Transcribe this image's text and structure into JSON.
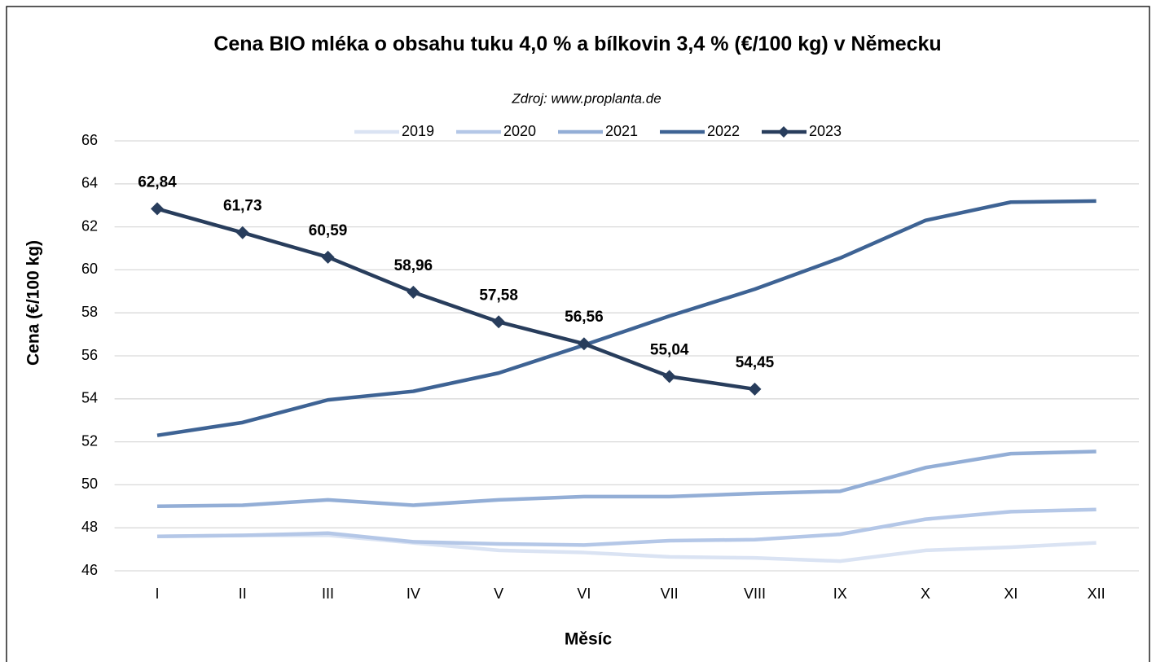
{
  "chart_data": {
    "type": "line",
    "title": "Cena BIO mléka o obsahu tuku 4,0 % a bílkovin 3,4 % (€/100 kg) v Německu",
    "subtitle": "Zdroj: www.proplanta.de",
    "x_label": "Měsíc",
    "y_label": "Cena (€/100 kg)",
    "categories": [
      "I",
      "II",
      "III",
      "IV",
      "V",
      "VI",
      "VII",
      "VIII",
      "IX",
      "X",
      "XI",
      "XII"
    ],
    "series": [
      {
        "name": "2019",
        "color": "#dae3f3",
        "values": [
          47.6,
          47.65,
          47.65,
          47.3,
          46.95,
          46.85,
          46.65,
          46.6,
          46.45,
          46.95,
          47.1,
          47.3
        ]
      },
      {
        "name": "2020",
        "color": "#b4c7e7",
        "values": [
          47.6,
          47.65,
          47.75,
          47.35,
          47.25,
          47.2,
          47.4,
          47.45,
          47.7,
          48.4,
          48.75,
          48.85
        ]
      },
      {
        "name": "2021",
        "color": "#93aed6",
        "values": [
          49.0,
          49.05,
          49.3,
          49.05,
          49.3,
          49.45,
          49.45,
          49.6,
          49.7,
          50.8,
          51.45,
          51.55
        ]
      },
      {
        "name": "2022",
        "color": "#3e6394",
        "values": [
          52.3,
          52.9,
          53.95,
          54.35,
          55.2,
          56.5,
          57.85,
          59.1,
          60.55,
          62.3,
          63.15,
          63.2
        ]
      },
      {
        "name": "2023",
        "color": "#283d5c",
        "marker": "diamond",
        "values": [
          62.84,
          61.73,
          60.59,
          58.96,
          57.58,
          56.56,
          55.04,
          54.45,
          null,
          null,
          null,
          null
        ],
        "value_labels": [
          "62,84",
          "61,73",
          "60,59",
          "58,96",
          "57,58",
          "56,56",
          "55,04",
          "54,45",
          null,
          null,
          null,
          null
        ]
      }
    ],
    "ylim": [
      46,
      66
    ],
    "yticks": [
      46,
      48,
      50,
      52,
      54,
      56,
      58,
      60,
      62,
      64,
      66
    ],
    "grid": true,
    "legend": "top"
  }
}
